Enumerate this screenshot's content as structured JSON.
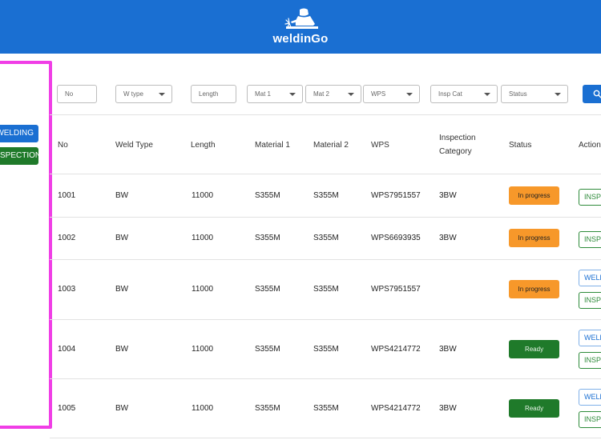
{
  "app": {
    "title": "weldinGo",
    "logo_icon": "welder-icon"
  },
  "sidebar": {
    "welding_label": "WELDING",
    "inspection_label": "INSPECTION"
  },
  "filters": {
    "no": "No",
    "weld_type": "W type",
    "length": "Length",
    "mat1": "Mat 1",
    "mat2": "Mat 2",
    "wps": "WPS",
    "insp_cat": "Insp Cat",
    "status": "Status",
    "search_icon": "search-icon"
  },
  "table": {
    "headers": {
      "no": "No",
      "weld_type": "Weld Type",
      "length": "Length",
      "material1": "Material 1",
      "material2": "Material 2",
      "wps": "WPS",
      "inspection_line1": "Inspection",
      "inspection_line2": "Category",
      "status": "Status",
      "action": "Action"
    },
    "rows": [
      {
        "no": "1001",
        "weld_type": "BW",
        "length": "11000",
        "material1": "S355M",
        "material2": "S355M",
        "wps": "WPS7951557",
        "category": "3BW",
        "status": "In progress",
        "actions": [
          "INSPECTION"
        ]
      },
      {
        "no": "1002",
        "weld_type": "BW",
        "length": "11000",
        "material1": "S355M",
        "material2": "S355M",
        "wps": "WPS6693935",
        "category": "3BW",
        "status": "In progress",
        "actions": [
          "INSPECTION"
        ]
      },
      {
        "no": "1003",
        "weld_type": "BW",
        "length": "11000",
        "material1": "S355M",
        "material2": "S355M",
        "wps": "WPS7951557",
        "category": "3BW",
        "status": "In progress",
        "actions": [
          "WELDING",
          "INSPECTION"
        ]
      },
      {
        "no": "1004",
        "weld_type": "BW",
        "length": "11000",
        "material1": "S355M",
        "material2": "S355M",
        "wps": "WPS4214772",
        "category": "3BW",
        "status": "Ready",
        "actions": [
          "WELDING",
          "INSPECTION"
        ]
      },
      {
        "no": "1005",
        "weld_type": "BW",
        "length": "11000",
        "material1": "S355M",
        "material2": "S355M",
        "wps": "WPS4214772",
        "category": "3BW",
        "status": "Ready",
        "actions": [
          "WELDING",
          "INSPECTION"
        ]
      }
    ]
  },
  "colors": {
    "primary": "#1a6fd2",
    "success": "#1f7a2a",
    "warning": "#f7982a",
    "highlight": "#f03ee6"
  }
}
